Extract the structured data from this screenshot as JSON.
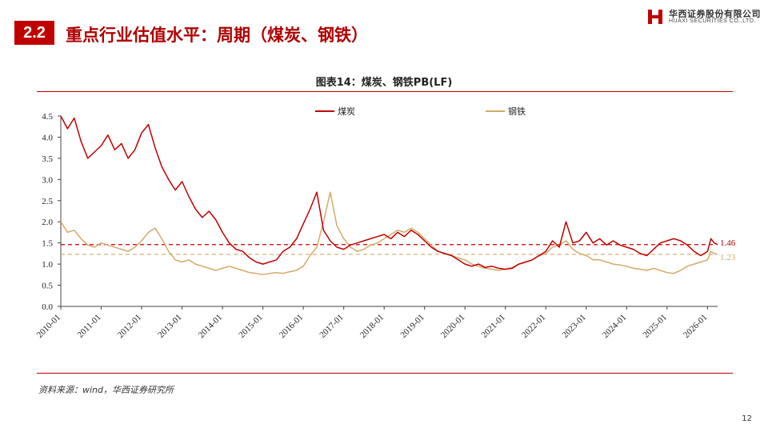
{
  "header": {
    "section_number": "2.2",
    "title": "重点行业估值水平：周期（煤炭、钢铁）"
  },
  "logo": {
    "cn": "华西证券股份有限公司",
    "en": "HUAXI SECURITIES CO.,LTD."
  },
  "footer": {
    "source": "资料来源：wind，华西证券研究所",
    "page": "12"
  },
  "colors": {
    "accent": "#c00000",
    "coal": "#c00000",
    "steel": "#d4aa6a"
  },
  "chart_data": {
    "type": "line",
    "title": "图表14：煤炭、钢铁PB(LF)",
    "x_tick_labels": [
      "2010-01",
      "2011-01",
      "2012-01",
      "2013-01",
      "2014-01",
      "2015-01",
      "2016-01",
      "2017-01",
      "2018-01",
      "2019-01",
      "2020-01",
      "2021-01",
      "2022-01",
      "2023-01",
      "2024-01",
      "2025-01",
      "2026-01"
    ],
    "x_range": [
      "2010-01",
      "2026-04"
    ],
    "ylim": [
      0,
      4.5
    ],
    "y_ticks": [
      "0.0",
      "0.5",
      "1.0",
      "1.5",
      "2.0",
      "2.5",
      "3.0",
      "3.5",
      "4.0",
      "4.5"
    ],
    "legend_position": "top",
    "series": [
      {
        "name": "煤炭",
        "color": "#c00000",
        "points": [
          [
            "2010-01",
            4.5
          ],
          [
            "2010-03",
            4.2
          ],
          [
            "2010-05",
            4.45
          ],
          [
            "2010-07",
            3.9
          ],
          [
            "2010-09",
            3.5
          ],
          [
            "2010-11",
            3.65
          ],
          [
            "2011-01",
            3.8
          ],
          [
            "2011-03",
            4.05
          ],
          [
            "2011-05",
            3.7
          ],
          [
            "2011-07",
            3.85
          ],
          [
            "2011-09",
            3.5
          ],
          [
            "2011-11",
            3.7
          ],
          [
            "2012-01",
            4.1
          ],
          [
            "2012-03",
            4.3
          ],
          [
            "2012-05",
            3.75
          ],
          [
            "2012-07",
            3.3
          ],
          [
            "2012-09",
            3.0
          ],
          [
            "2012-11",
            2.75
          ],
          [
            "2013-01",
            2.95
          ],
          [
            "2013-03",
            2.6
          ],
          [
            "2013-05",
            2.3
          ],
          [
            "2013-07",
            2.1
          ],
          [
            "2013-09",
            2.25
          ],
          [
            "2013-11",
            2.05
          ],
          [
            "2014-01",
            1.75
          ],
          [
            "2014-03",
            1.5
          ],
          [
            "2014-05",
            1.35
          ],
          [
            "2014-07",
            1.3
          ],
          [
            "2014-09",
            1.15
          ],
          [
            "2014-11",
            1.05
          ],
          [
            "2015-01",
            1.0
          ],
          [
            "2015-03",
            1.05
          ],
          [
            "2015-05",
            1.1
          ],
          [
            "2015-07",
            1.3
          ],
          [
            "2015-09",
            1.4
          ],
          [
            "2015-11",
            1.6
          ],
          [
            "2016-01",
            1.95
          ],
          [
            "2016-03",
            2.3
          ],
          [
            "2016-05",
            2.7
          ],
          [
            "2016-07",
            1.8
          ],
          [
            "2016-09",
            1.55
          ],
          [
            "2016-11",
            1.4
          ],
          [
            "2017-01",
            1.35
          ],
          [
            "2017-03",
            1.45
          ],
          [
            "2017-05",
            1.5
          ],
          [
            "2017-07",
            1.55
          ],
          [
            "2017-09",
            1.6
          ],
          [
            "2017-11",
            1.65
          ],
          [
            "2018-01",
            1.7
          ],
          [
            "2018-03",
            1.6
          ],
          [
            "2018-05",
            1.75
          ],
          [
            "2018-07",
            1.65
          ],
          [
            "2018-09",
            1.8
          ],
          [
            "2018-11",
            1.7
          ],
          [
            "2019-01",
            1.55
          ],
          [
            "2019-03",
            1.4
          ],
          [
            "2019-05",
            1.3
          ],
          [
            "2019-07",
            1.25
          ],
          [
            "2019-09",
            1.2
          ],
          [
            "2019-11",
            1.1
          ],
          [
            "2020-01",
            1.0
          ],
          [
            "2020-03",
            0.95
          ],
          [
            "2020-05",
            1.0
          ],
          [
            "2020-07",
            0.92
          ],
          [
            "2020-09",
            0.95
          ],
          [
            "2020-11",
            0.9
          ],
          [
            "2021-01",
            0.88
          ],
          [
            "2021-03",
            0.9
          ],
          [
            "2021-05",
            1.0
          ],
          [
            "2021-07",
            1.05
          ],
          [
            "2021-09",
            1.1
          ],
          [
            "2021-11",
            1.2
          ],
          [
            "2022-01",
            1.3
          ],
          [
            "2022-03",
            1.55
          ],
          [
            "2022-05",
            1.4
          ],
          [
            "2022-07",
            2.0
          ],
          [
            "2022-09",
            1.5
          ],
          [
            "2022-11",
            1.55
          ],
          [
            "2023-01",
            1.75
          ],
          [
            "2023-03",
            1.5
          ],
          [
            "2023-05",
            1.6
          ],
          [
            "2023-07",
            1.45
          ],
          [
            "2023-09",
            1.55
          ],
          [
            "2023-11",
            1.45
          ],
          [
            "2024-01",
            1.4
          ],
          [
            "2024-03",
            1.35
          ],
          [
            "2024-05",
            1.25
          ],
          [
            "2024-07",
            1.2
          ],
          [
            "2024-09",
            1.35
          ],
          [
            "2024-11",
            1.5
          ],
          [
            "2025-01",
            1.55
          ],
          [
            "2025-03",
            1.6
          ],
          [
            "2025-05",
            1.55
          ],
          [
            "2025-07",
            1.45
          ],
          [
            "2025-09",
            1.3
          ],
          [
            "2025-11",
            1.2
          ],
          [
            "2026-01",
            1.3
          ],
          [
            "2026-02",
            1.6
          ],
          [
            "2026-03",
            1.5
          ],
          [
            "2026-04",
            1.46
          ]
        ]
      },
      {
        "name": "钢铁",
        "color": "#d4aa6a",
        "points": [
          [
            "2010-01",
            2.0
          ],
          [
            "2010-03",
            1.75
          ],
          [
            "2010-05",
            1.8
          ],
          [
            "2010-07",
            1.6
          ],
          [
            "2010-09",
            1.45
          ],
          [
            "2010-11",
            1.4
          ],
          [
            "2011-01",
            1.5
          ],
          [
            "2011-03",
            1.45
          ],
          [
            "2011-05",
            1.4
          ],
          [
            "2011-07",
            1.35
          ],
          [
            "2011-09",
            1.3
          ],
          [
            "2011-11",
            1.4
          ],
          [
            "2012-01",
            1.55
          ],
          [
            "2012-03",
            1.75
          ],
          [
            "2012-05",
            1.85
          ],
          [
            "2012-07",
            1.6
          ],
          [
            "2012-09",
            1.3
          ],
          [
            "2012-11",
            1.1
          ],
          [
            "2013-01",
            1.05
          ],
          [
            "2013-03",
            1.1
          ],
          [
            "2013-05",
            1.0
          ],
          [
            "2013-07",
            0.95
          ],
          [
            "2013-09",
            0.9
          ],
          [
            "2013-11",
            0.85
          ],
          [
            "2014-01",
            0.9
          ],
          [
            "2014-03",
            0.95
          ],
          [
            "2014-05",
            0.9
          ],
          [
            "2014-07",
            0.85
          ],
          [
            "2014-09",
            0.8
          ],
          [
            "2014-11",
            0.78
          ],
          [
            "2015-01",
            0.75
          ],
          [
            "2015-03",
            0.78
          ],
          [
            "2015-05",
            0.8
          ],
          [
            "2015-07",
            0.78
          ],
          [
            "2015-09",
            0.82
          ],
          [
            "2015-11",
            0.85
          ],
          [
            "2016-01",
            0.95
          ],
          [
            "2016-03",
            1.2
          ],
          [
            "2016-05",
            1.4
          ],
          [
            "2016-07",
            2.0
          ],
          [
            "2016-09",
            2.7
          ],
          [
            "2016-11",
            1.9
          ],
          [
            "2017-01",
            1.6
          ],
          [
            "2017-03",
            1.4
          ],
          [
            "2017-05",
            1.3
          ],
          [
            "2017-07",
            1.35
          ],
          [
            "2017-09",
            1.45
          ],
          [
            "2017-11",
            1.5
          ],
          [
            "2018-01",
            1.6
          ],
          [
            "2018-03",
            1.7
          ],
          [
            "2018-05",
            1.8
          ],
          [
            "2018-07",
            1.75
          ],
          [
            "2018-09",
            1.85
          ],
          [
            "2018-11",
            1.75
          ],
          [
            "2019-01",
            1.6
          ],
          [
            "2019-03",
            1.45
          ],
          [
            "2019-05",
            1.3
          ],
          [
            "2019-07",
            1.25
          ],
          [
            "2019-09",
            1.2
          ],
          [
            "2019-11",
            1.15
          ],
          [
            "2020-01",
            1.1
          ],
          [
            "2020-03",
            1.0
          ],
          [
            "2020-05",
            0.95
          ],
          [
            "2020-07",
            0.9
          ],
          [
            "2020-09",
            0.88
          ],
          [
            "2020-11",
            0.85
          ],
          [
            "2021-01",
            0.88
          ],
          [
            "2021-03",
            0.92
          ],
          [
            "2021-05",
            1.0
          ],
          [
            "2021-07",
            1.05
          ],
          [
            "2021-09",
            1.1
          ],
          [
            "2021-11",
            1.2
          ],
          [
            "2022-01",
            1.25
          ],
          [
            "2022-03",
            1.4
          ],
          [
            "2022-05",
            1.45
          ],
          [
            "2022-07",
            1.55
          ],
          [
            "2022-09",
            1.35
          ],
          [
            "2022-11",
            1.25
          ],
          [
            "2023-01",
            1.2
          ],
          [
            "2023-03",
            1.1
          ],
          [
            "2023-05",
            1.1
          ],
          [
            "2023-07",
            1.05
          ],
          [
            "2023-09",
            1.0
          ],
          [
            "2023-11",
            0.98
          ],
          [
            "2024-01",
            0.95
          ],
          [
            "2024-03",
            0.9
          ],
          [
            "2024-05",
            0.88
          ],
          [
            "2024-07",
            0.85
          ],
          [
            "2024-09",
            0.9
          ],
          [
            "2024-11",
            0.85
          ],
          [
            "2025-01",
            0.8
          ],
          [
            "2025-03",
            0.78
          ],
          [
            "2025-05",
            0.85
          ],
          [
            "2025-07",
            0.95
          ],
          [
            "2025-09",
            1.0
          ],
          [
            "2025-11",
            1.05
          ],
          [
            "2026-01",
            1.1
          ],
          [
            "2026-02",
            1.3
          ],
          [
            "2026-03",
            1.25
          ],
          [
            "2026-04",
            1.23
          ]
        ]
      }
    ],
    "reference_lines": [
      {
        "value": 1.46,
        "label": "1.46",
        "color": "#c00000",
        "style": "dashed"
      },
      {
        "value": 1.23,
        "label": "1.23",
        "color": "#d4aa6a",
        "style": "dashed"
      }
    ]
  }
}
